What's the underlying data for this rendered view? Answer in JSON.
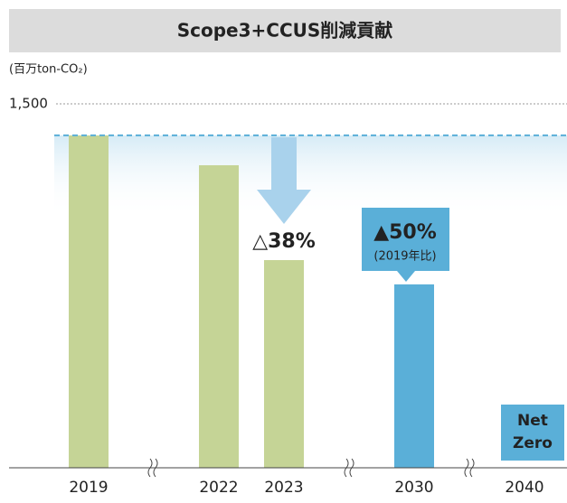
{
  "chart_data": {
    "type": "bar",
    "title": "Scope3+CCUS削減貢献",
    "unit_label": "(百万ton-CO₂)",
    "categories": [
      "2019",
      "2022",
      "2023",
      "2030",
      "2040"
    ],
    "values": [
      1370,
      1247,
      856,
      756,
      0
    ],
    "colors": [
      "#c5d496",
      "#c5d496",
      "#c5d496",
      "#5aafd8",
      "#5aafd8"
    ],
    "ylim": [
      0,
      1500
    ],
    "yticks": [
      {
        "value": 1500,
        "label": "1,500"
      }
    ],
    "annotations": [
      "△38%",
      "▲50%",
      "(2019年比)",
      "Net",
      "Zero"
    ]
  }
}
